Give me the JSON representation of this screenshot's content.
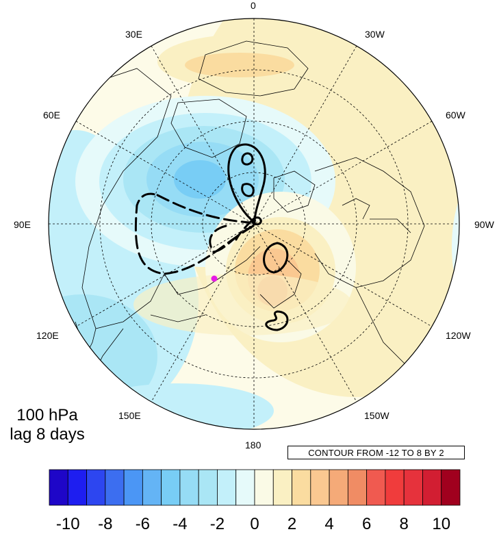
{
  "panel": {
    "level": "100 hPa",
    "lag": "lag 8 days"
  },
  "contour_info": "CONTOUR FROM -12 TO 8 BY 2",
  "longitude_labels": {
    "l0": "0",
    "l30w": "30W",
    "l60w": "60W",
    "l90w": "90W",
    "l120w": "120W",
    "l150w": "150W",
    "l180": "180",
    "l150e": "150E",
    "l120e": "120E",
    "l90e": "90E",
    "l60e": "60E",
    "l30e": "30E"
  },
  "colorbar": {
    "labels": [
      "-10",
      "-8",
      "-6",
      "-4",
      "-2",
      "0",
      "2",
      "4",
      "6",
      "8",
      "10"
    ],
    "colors": [
      "#1e06c8",
      "#1e1ef0",
      "#2d46f0",
      "#3c6ef0",
      "#4b96f5",
      "#64b4f5",
      "#78cdf5",
      "#96dcf5",
      "#aae6f5",
      "#c3f0fa",
      "#e6fafa",
      "#fafae6",
      "#faf0c3",
      "#fadca0",
      "#fac891",
      "#f5aa78",
      "#f08c64",
      "#f05a50",
      "#f03c3c",
      "#e6323c",
      "#d21e32",
      "#a0001e"
    ]
  },
  "marker": {
    "color": "#e619e6"
  }
}
